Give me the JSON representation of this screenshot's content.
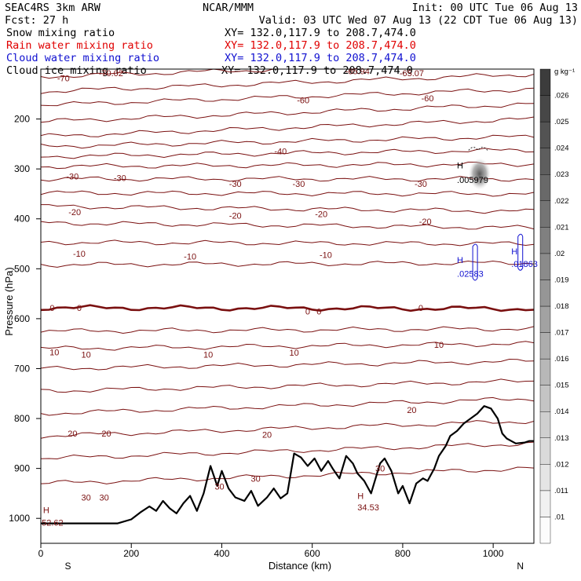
{
  "header": {
    "model": "SEAC4RS   3km ARW",
    "org": "NCAR/MMM",
    "init": "Init: 00 UTC Tue 06 Aug 13",
    "fcst": "Fcst:   27 h",
    "valid": "Valid: 03 UTC Wed 07 Aug 13 (22 CDT Tue 06 Aug 13)",
    "fields": [
      {
        "name": "Snow mixing ratio",
        "xy": "XY= 132.0,117.9 to 208.7,474.0",
        "color": "#000000"
      },
      {
        "name": "Rain water mixing ratio",
        "xy": "XY= 132.0,117.9 to 208.7,474.0",
        "color": "#e00000"
      },
      {
        "name": "Cloud water mixing ratio",
        "xy": "XY= 132.0,117.9 to 208.7,474.0",
        "color": "#1010d0"
      },
      {
        "name": "Cloud ice mixing ratio",
        "xy": "XY= 132.0,117.9 to 208.7,474.0",
        "color": "#000000"
      }
    ]
  },
  "chart_data": {
    "type": "contour-cross-section",
    "xlabel": "Distance (km)",
    "ylabel": "Pressure (hPa)",
    "xlim": [
      0,
      1090
    ],
    "ylim": [
      1050,
      100
    ],
    "xticks": [
      0,
      200,
      400,
      600,
      800,
      1000
    ],
    "yticks": [
      200,
      300,
      400,
      500,
      600,
      700,
      800,
      900,
      1000
    ],
    "endpoint_labels": {
      "left": "S",
      "right": "N"
    },
    "colorbar": {
      "units": "g kg⁻¹",
      "ticks": [
        ".01",
        ".011",
        ".012",
        ".013",
        ".014",
        ".015",
        ".016",
        ".017",
        ".018",
        ".019",
        ".02",
        ".021",
        ".022",
        ".023",
        ".024",
        ".025",
        ".026"
      ],
      "min": 0.01,
      "max": 0.026
    },
    "temperature_contour_color": "#7a1010",
    "temperature_contours": [
      {
        "t": -70,
        "p_left": 115,
        "p_right": 85
      },
      {
        "t": -65,
        "p_left": 145,
        "p_right": 110
      },
      {
        "t": -60,
        "p_left": 172,
        "p_right": 140
      },
      {
        "t": -55,
        "p_left": 205,
        "p_right": 170
      },
      {
        "t": -50,
        "p_left": 235,
        "p_right": 200
      },
      {
        "t": -45,
        "p_left": 255,
        "p_right": 235
      },
      {
        "t": -40,
        "p_left": 275,
        "p_right": 262
      },
      {
        "t": -35,
        "p_left": 295,
        "p_right": 290
      },
      {
        "t": -30,
        "p_left": 320,
        "p_right": 320
      },
      {
        "t": -25,
        "p_left": 348,
        "p_right": 350
      },
      {
        "t": -20,
        "p_left": 375,
        "p_right": 385
      },
      {
        "t": -15,
        "p_left": 408,
        "p_right": 418
      },
      {
        "t": -10,
        "p_left": 447,
        "p_right": 450
      },
      {
        "t": -5,
        "p_left": 492,
        "p_right": 488
      },
      {
        "t": 0,
        "p_left": 578,
        "p_right": 580
      },
      {
        "t": 5,
        "p_left": 625,
        "p_right": 620
      },
      {
        "t": 10,
        "p_left": 660,
        "p_right": 650
      },
      {
        "t": 15,
        "p_left": 700,
        "p_right": 685
      },
      {
        "t": 20,
        "p_left": 745,
        "p_right": 725
      },
      {
        "t": 25,
        "p_left": 790,
        "p_right": 760
      },
      {
        "t": 30,
        "p_left": 835,
        "p_right": 805
      },
      {
        "t": 35,
        "p_left": 880,
        "p_right": 850
      },
      {
        "t": 40,
        "p_left": 930,
        "p_right": 900
      }
    ],
    "contour_labels": [
      {
        "text": "-70",
        "x": 50,
        "p": 118
      },
      {
        "text": "-70.02",
        "x": 155,
        "p": 108
      },
      {
        "text": "-65.94",
        "x": 700,
        "p": 104
      },
      {
        "text": "-65.07",
        "x": 820,
        "p": 108
      },
      {
        "text": "-60",
        "x": 580,
        "p": 162
      },
      {
        "text": "-60",
        "x": 855,
        "p": 158
      },
      {
        "text": "-40",
        "x": 530,
        "p": 264
      },
      {
        "text": "-30",
        "x": 70,
        "p": 315
      },
      {
        "text": "-30",
        "x": 175,
        "p": 318
      },
      {
        "text": "-30",
        "x": 430,
        "p": 330
      },
      {
        "text": "-30",
        "x": 570,
        "p": 330
      },
      {
        "text": "-30",
        "x": 840,
        "p": 330
      },
      {
        "text": "-20",
        "x": 75,
        "p": 386
      },
      {
        "text": "-20",
        "x": 430,
        "p": 393
      },
      {
        "text": "-20",
        "x": 620,
        "p": 390
      },
      {
        "text": "-20",
        "x": 850,
        "p": 405
      },
      {
        "text": "-10",
        "x": 85,
        "p": 470
      },
      {
        "text": "-10",
        "x": 330,
        "p": 475
      },
      {
        "text": "-10",
        "x": 630,
        "p": 472
      },
      {
        "text": "0",
        "x": 25,
        "p": 578
      },
      {
        "text": "0",
        "x": 85,
        "p": 578
      },
      {
        "text": "0",
        "x": 590,
        "p": 585
      },
      {
        "text": "0",
        "x": 615,
        "p": 585
      },
      {
        "text": "0",
        "x": 840,
        "p": 578
      },
      {
        "text": "10",
        "x": 30,
        "p": 667
      },
      {
        "text": "10",
        "x": 100,
        "p": 672
      },
      {
        "text": "10",
        "x": 370,
        "p": 672
      },
      {
        "text": "10",
        "x": 560,
        "p": 668
      },
      {
        "text": "10",
        "x": 880,
        "p": 652
      },
      {
        "text": "20",
        "x": 70,
        "p": 830
      },
      {
        "text": "20",
        "x": 145,
        "p": 830
      },
      {
        "text": "20",
        "x": 500,
        "p": 832
      },
      {
        "text": "20",
        "x": 820,
        "p": 783
      },
      {
        "text": "30",
        "x": 100,
        "p": 958
      },
      {
        "text": "30",
        "x": 140,
        "p": 958
      },
      {
        "text": "30",
        "x": 395,
        "p": 936
      },
      {
        "text": "30",
        "x": 475,
        "p": 920
      },
      {
        "text": "30",
        "x": 750,
        "p": 900
      }
    ],
    "extrema_labels": [
      {
        "text": "H",
        "x": 5,
        "p": 983,
        "color": "#7a1010"
      },
      {
        "text": "52.62",
        "x": 2,
        "p": 1008,
        "color": "#7a1010"
      },
      {
        "text": "H",
        "x": 700,
        "p": 955,
        "color": "#7a1010"
      },
      {
        "text": "34.53",
        "x": 700,
        "p": 978,
        "color": "#7a1010"
      },
      {
        "text": "H",
        "x": 920,
        "p": 293,
        "color": "#000000"
      },
      {
        "text": ".005979",
        "x": 920,
        "p": 322,
        "color": "#000000"
      },
      {
        "text": "H",
        "x": 920,
        "p": 482,
        "color": "#1010d0"
      },
      {
        "text": ".02583",
        "x": 920,
        "p": 510,
        "color": "#1010d0"
      },
      {
        "text": "H",
        "x": 1040,
        "p": 465,
        "color": "#1010d0"
      },
      {
        "text": ".01863",
        "x": 1040,
        "p": 490,
        "color": "#1010d0"
      }
    ],
    "terrain": [
      [
        0,
        1010
      ],
      [
        170,
        1010
      ],
      [
        200,
        1002
      ],
      [
        220,
        988
      ],
      [
        240,
        976
      ],
      [
        255,
        985
      ],
      [
        270,
        965
      ],
      [
        285,
        980
      ],
      [
        300,
        990
      ],
      [
        315,
        970
      ],
      [
        330,
        955
      ],
      [
        345,
        985
      ],
      [
        360,
        950
      ],
      [
        375,
        895
      ],
      [
        390,
        935
      ],
      [
        400,
        905
      ],
      [
        415,
        940
      ],
      [
        430,
        958
      ],
      [
        450,
        965
      ],
      [
        465,
        945
      ],
      [
        480,
        975
      ],
      [
        500,
        958
      ],
      [
        515,
        940
      ],
      [
        530,
        960
      ],
      [
        545,
        950
      ],
      [
        560,
        870
      ],
      [
        575,
        878
      ],
      [
        590,
        895
      ],
      [
        605,
        880
      ],
      [
        620,
        905
      ],
      [
        635,
        885
      ],
      [
        645,
        900
      ],
      [
        660,
        920
      ],
      [
        675,
        875
      ],
      [
        690,
        890
      ],
      [
        700,
        910
      ],
      [
        715,
        925
      ],
      [
        730,
        950
      ],
      [
        750,
        890
      ],
      [
        760,
        880
      ],
      [
        775,
        905
      ],
      [
        790,
        950
      ],
      [
        800,
        935
      ],
      [
        815,
        970
      ],
      [
        830,
        930
      ],
      [
        845,
        920
      ],
      [
        855,
        925
      ],
      [
        870,
        900
      ],
      [
        880,
        875
      ],
      [
        895,
        855
      ],
      [
        905,
        835
      ],
      [
        920,
        825
      ],
      [
        935,
        810
      ],
      [
        950,
        800
      ],
      [
        965,
        790
      ],
      [
        980,
        775
      ],
      [
        995,
        780
      ],
      [
        1010,
        800
      ],
      [
        1020,
        830
      ],
      [
        1030,
        840
      ],
      [
        1040,
        845
      ],
      [
        1050,
        850
      ],
      [
        1060,
        849
      ],
      [
        1070,
        848
      ],
      [
        1080,
        845
      ],
      [
        1090,
        845
      ]
    ],
    "cloud_ice_max": {
      "x": 970,
      "p": 310,
      "value": 0.005979
    },
    "cloud_water_max": [
      {
        "x": 960,
        "p": 490,
        "value": 0.02583
      },
      {
        "x": 1060,
        "p": 470,
        "value": 0.01863
      }
    ]
  }
}
